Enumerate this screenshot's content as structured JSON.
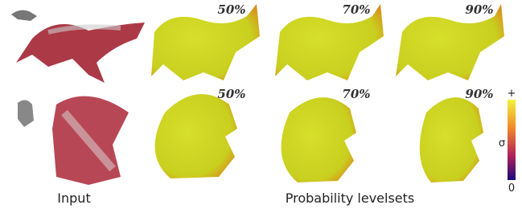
{
  "top_labels": [
    "50%",
    "70%",
    "90%"
  ],
  "bottom_labels": [
    "50%",
    "70%",
    "90%"
  ],
  "captions": {
    "input": "Input",
    "levelsets": "Probability levelsets"
  },
  "colorbar": {
    "max_label": "+",
    "symbol": "σ",
    "min_label": "0"
  }
}
